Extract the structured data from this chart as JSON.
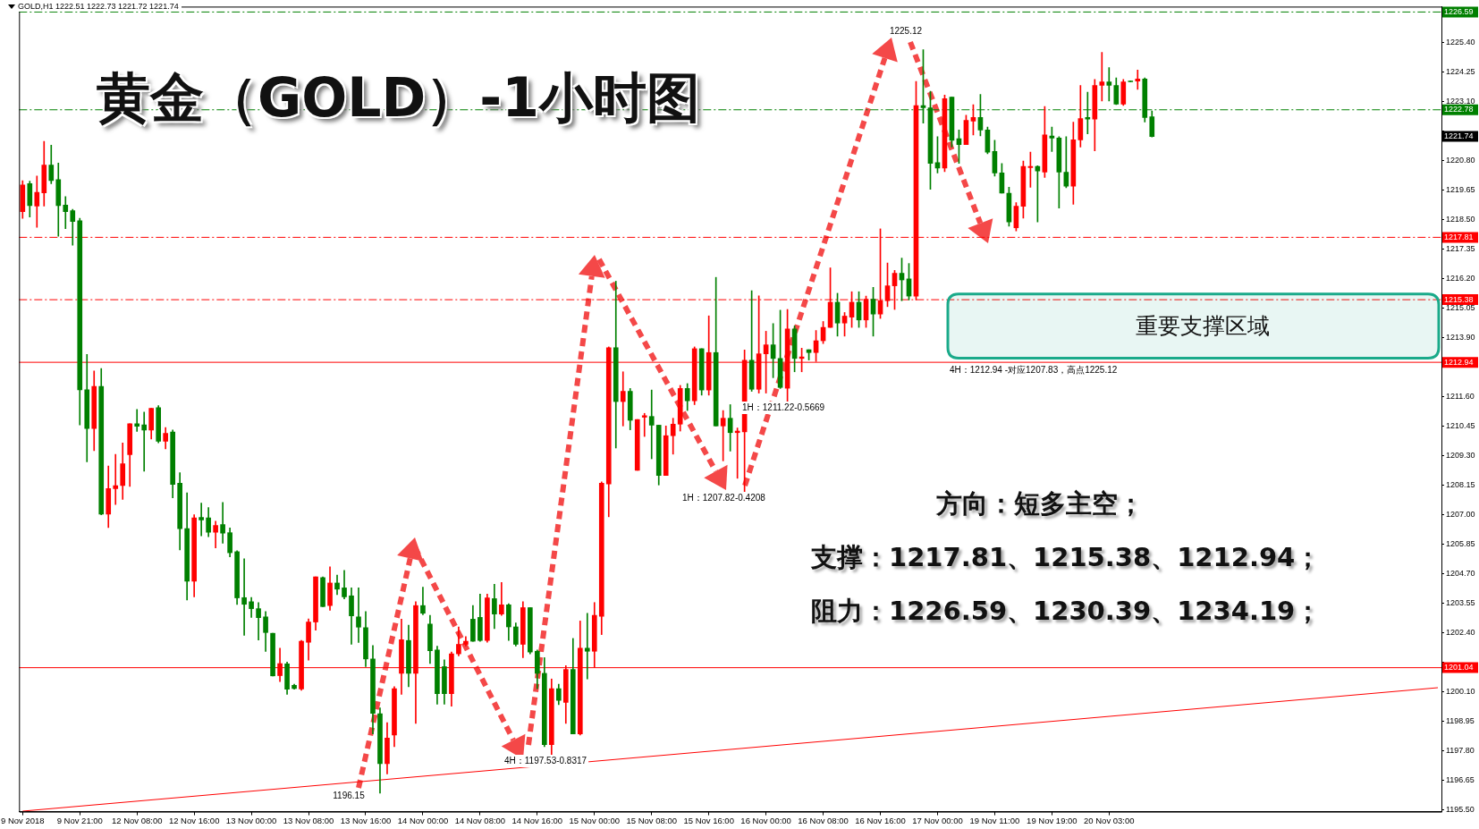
{
  "chart_data": {
    "type": "candlestick",
    "title": "黄金（GOLD）-1小时图",
    "subtitle": "GOLD,H1  1222.51 1222.73 1221.72 1221.74",
    "categories": [
      "9 Nov 2018",
      null,
      null,
      null,
      null,
      null,
      null,
      null,
      "9 Nov 21:00",
      null,
      null,
      null,
      null,
      null,
      null,
      null,
      "12 Nov 08:00",
      null,
      null,
      null,
      null,
      null,
      null,
      null,
      "12 Nov 16:00",
      null,
      null,
      null,
      null,
      null,
      null,
      null,
      "13 Nov 00:00",
      null,
      null,
      null,
      null,
      null,
      null,
      null,
      "13 Nov 08:00",
      null,
      null,
      null,
      null,
      null,
      null,
      null,
      "13 Nov 16:00",
      null,
      null,
      null,
      null,
      null,
      null,
      null,
      "14 Nov 00:00",
      null,
      null,
      null,
      null,
      null,
      null,
      null,
      "14 Nov 08:00",
      null,
      null,
      null,
      null,
      null,
      null,
      null,
      "14 Nov 16:00",
      null,
      null,
      null,
      null,
      null,
      null,
      null,
      "15 Nov 00:00",
      null,
      null,
      null,
      null,
      null,
      null,
      null,
      "15 Nov 08:00",
      null,
      null,
      null,
      null,
      null,
      null,
      null,
      "15 Nov 16:00",
      null,
      null,
      null,
      null,
      null,
      null,
      null,
      "16 Nov 00:00",
      null,
      null,
      null,
      null,
      null,
      null,
      null,
      "16 Nov 08:00",
      null,
      null,
      null,
      null,
      null,
      null,
      null,
      "16 Nov 16:00",
      null,
      null,
      null,
      null,
      null,
      null,
      null,
      "17 Nov 00:00",
      null,
      null,
      null,
      null,
      null,
      null,
      null,
      "19 Nov 11:00",
      null,
      null,
      null,
      null,
      null,
      null,
      null,
      "19 Nov 19:00",
      null,
      null,
      null,
      null,
      null,
      null,
      null,
      "20 Nov 03:00",
      null,
      null,
      null,
      null,
      null,
      null,
      null,
      null,
      null,
      null,
      null,
      null,
      null,
      null,
      null,
      null,
      null,
      null,
      null,
      null,
      null,
      null,
      null,
      null,
      null,
      null,
      null,
      null,
      null,
      null,
      null,
      null,
      null,
      null,
      null,
      null,
      null,
      null,
      null,
      null,
      null,
      null,
      null,
      null,
      null,
      null
    ],
    "ohlc": [
      [
        1218.81,
        1220.02,
        1218.55,
        1219.85
      ],
      [
        1219.9,
        1220.0,
        1218.6,
        1219.05
      ],
      [
        1219.03,
        1220.2,
        1218.2,
        1219.56
      ],
      [
        1219.54,
        1221.55,
        1219.03,
        1220.63
      ],
      [
        1220.63,
        1221.4,
        1219.9,
        1220.02
      ],
      [
        1220.06,
        1220.7,
        1217.85,
        1219.05
      ],
      [
        1219.07,
        1219.4,
        1218.15,
        1218.81
      ],
      [
        1218.85,
        1218.9,
        1217.5,
        1218.43
      ],
      [
        1218.46,
        1218.55,
        1210.5,
        1211.87
      ],
      [
        1211.87,
        1213.25,
        1209.06,
        1210.36
      ],
      [
        1210.36,
        1212.6,
        1209.5,
        1212.0
      ],
      [
        1212.0,
        1212.7,
        1207.0,
        1207.02
      ],
      [
        1207.02,
        1208.9,
        1206.5,
        1208.02
      ],
      [
        1208.02,
        1209.35,
        1207.4,
        1208.13
      ],
      [
        1208.14,
        1209.8,
        1207.6,
        1208.99
      ],
      [
        1209.34,
        1210.55,
        1208.1,
        1210.55
      ],
      [
        1210.55,
        1211.1,
        1210.25,
        1210.45
      ],
      [
        1210.5,
        1211.0,
        1208.7,
        1210.3
      ],
      [
        1210.3,
        1211.15,
        1209.95,
        1211.15
      ],
      [
        1211.17,
        1211.25,
        1209.8,
        1209.86
      ],
      [
        1209.86,
        1210.4,
        1209.57,
        1210.17
      ],
      [
        1210.22,
        1210.3,
        1207.66,
        1208.18
      ],
      [
        1208.23,
        1208.64,
        1205.63,
        1206.46
      ],
      [
        1206.46,
        1207.85,
        1203.68,
        1204.41
      ],
      [
        1204.41,
        1207.0,
        1203.8,
        1206.88
      ],
      [
        1206.9,
        1207.45,
        1206.18,
        1206.8
      ],
      [
        1206.88,
        1207.28,
        1206.14,
        1206.32
      ],
      [
        1206.32,
        1206.75,
        1205.71,
        1206.58
      ],
      [
        1206.62,
        1207.48,
        1205.89,
        1206.28
      ],
      [
        1206.3,
        1206.49,
        1205.36,
        1205.52
      ],
      [
        1205.56,
        1205.6,
        1203.5,
        1203.76
      ],
      [
        1203.77,
        1205.28,
        1202.3,
        1203.51
      ],
      [
        1203.61,
        1203.78,
        1203.0,
        1203.34
      ],
      [
        1203.34,
        1203.58,
        1202.12,
        1202.99
      ],
      [
        1203.02,
        1203.23,
        1201.67,
        1202.41
      ],
      [
        1202.38,
        1202.38,
        1200.72,
        1200.72
      ],
      [
        1200.73,
        1201.8,
        1200.5,
        1201.2
      ],
      [
        1201.19,
        1201.26,
        1200.0,
        1200.2
      ],
      [
        1200.35,
        1200.4,
        1200.2,
        1200.23
      ],
      [
        1200.21,
        1202.1,
        1200.16,
        1202.07
      ],
      [
        1202.03,
        1202.94,
        1201.33,
        1202.82
      ],
      [
        1202.82,
        1204.58,
        1202.5,
        1204.58
      ],
      [
        1204.55,
        1204.58,
        1203.42,
        1203.42
      ],
      [
        1203.46,
        1204.97,
        1203.28,
        1204.34
      ],
      [
        1204.34,
        1204.65,
        1203.89,
        1204.1
      ],
      [
        1204.15,
        1204.83,
        1203.72,
        1203.8
      ],
      [
        1203.84,
        1204.15,
        1201.95,
        1203.06
      ],
      [
        1203.02,
        1204.15,
        1202.02,
        1202.62
      ],
      [
        1202.6,
        1203.23,
        1201.08,
        1201.38
      ],
      [
        1201.38,
        1201.9,
        1198.46,
        1199.26
      ],
      [
        1199.25,
        1199.47,
        1196.15,
        1197.3
      ],
      [
        1197.3,
        1198.9,
        1196.9,
        1198.3
      ],
      [
        1198.42,
        1200.3,
        1197.96,
        1200.22
      ],
      [
        1200.82,
        1202.93,
        1200.0,
        1202.13
      ],
      [
        1202.1,
        1202.7,
        1200.3,
        1200.82
      ],
      [
        1200.82,
        1203.61,
        1198.87,
        1203.46
      ],
      [
        1203.46,
        1204.18,
        1203.1,
        1203.16
      ],
      [
        1202.74,
        1203.08,
        1201.2,
        1201.7
      ],
      [
        1201.73,
        1201.88,
        1199.62,
        1200.03
      ],
      [
        1201.08,
        1201.35,
        1199.62,
        1200.03
      ],
      [
        1200.03,
        1201.65,
        1199.54,
        1201.58
      ],
      [
        1201.58,
        1202.63,
        1201.5,
        1201.95
      ],
      [
        1201.95,
        1202.25,
        1201.88,
        1202.07
      ],
      [
        1202.93,
        1203.46,
        1202.07,
        1202.07
      ],
      [
        1203.0,
        1203.91,
        1202.07,
        1202.1
      ],
      [
        1202.1,
        1203.91,
        1202.03,
        1203.76
      ],
      [
        1203.73,
        1204.29,
        1202.56,
        1203.13
      ],
      [
        1203.13,
        1204.36,
        1203.08,
        1203.49
      ],
      [
        1203.49,
        1203.53,
        1202.1,
        1202.63
      ],
      [
        1202.63,
        1202.78,
        1201.88,
        1201.95
      ],
      [
        1201.95,
        1203.61,
        1201.43,
        1203.38
      ],
      [
        1203.38,
        1203.38,
        1201.58,
        1201.65
      ],
      [
        1201.68,
        1201.73,
        1200.22,
        1200.82
      ],
      [
        1200.82,
        1201.43,
        1197.96,
        1198.04
      ],
      [
        1198.04,
        1200.6,
        1197.53,
        1200.22
      ],
      [
        1200.22,
        1200.4,
        1199.6,
        1199.77
      ],
      [
        1199.69,
        1201.12,
        1198.87,
        1200.97
      ],
      [
        1200.97,
        1202.18,
        1198.46,
        1198.46
      ],
      [
        1198.46,
        1202.86,
        1198.42,
        1201.8
      ],
      [
        1201.8,
        1203.16,
        1200.6,
        1201.68
      ],
      [
        1201.68,
        1203.58,
        1201.05,
        1203.08
      ],
      [
        1203.04,
        1208.28,
        1202.33,
        1208.23
      ],
      [
        1208.2,
        1213.54,
        1206.92,
        1213.51
      ],
      [
        1213.51,
        1216.1,
        1209.6,
        1211.41
      ],
      [
        1211.41,
        1212.57,
        1210.46,
        1211.81
      ],
      [
        1211.81,
        1211.92,
        1210.31,
        1210.68
      ],
      [
        1208.73,
        1210.71,
        1208.73,
        1210.71
      ],
      [
        1210.8,
        1210.95,
        1210.05,
        1210.86
      ],
      [
        1210.83,
        1211.86,
        1209.18,
        1210.49
      ],
      [
        1210.49,
        1210.49,
        1208.16,
        1208.53
      ],
      [
        1208.53,
        1210.46,
        1208.53,
        1210.08
      ],
      [
        1210.08,
        1210.76,
        1209.36,
        1210.53
      ],
      [
        1210.53,
        1212.04,
        1210.26,
        1211.92
      ],
      [
        1211.92,
        1212.11,
        1211.06,
        1211.44
      ],
      [
        1211.44,
        1213.54,
        1211.29,
        1213.47
      ],
      [
        1213.47,
        1213.47,
        1211.66,
        1211.86
      ],
      [
        1211.86,
        1214.75,
        1211.66,
        1213.32
      ],
      [
        1213.32,
        1216.25,
        1210.46,
        1210.46
      ],
      [
        1210.46,
        1211.06,
        1209.1,
        1210.76
      ],
      [
        1210.76,
        1211.29,
        1209.48,
        1210.2
      ],
      [
        1210.2,
        1210.38,
        1208.42,
        1210.26
      ],
      [
        1210.23,
        1213.42,
        1207.82,
        1213.02
      ],
      [
        1213.02,
        1215.73,
        1211.81,
        1211.89
      ],
      [
        1211.89,
        1215.53,
        1211.74,
        1213.27
      ],
      [
        1213.27,
        1214.15,
        1211.74,
        1213.62
      ],
      [
        1213.62,
        1214.45,
        1212.34,
        1213.09
      ],
      [
        1213.09,
        1214.97,
        1211.92,
        1211.96
      ],
      [
        1211.93,
        1215.0,
        1211.29,
        1214.24
      ],
      [
        1214.24,
        1214.36,
        1212.57,
        1213.09
      ],
      [
        1213.09,
        1213.49,
        1212.57,
        1213.15
      ],
      [
        1213.43,
        1213.43,
        1213.03,
        1213.32
      ],
      [
        1213.32,
        1214.18,
        1212.97,
        1213.78
      ],
      [
        1213.78,
        1214.53,
        1213.67,
        1214.3
      ],
      [
        1214.3,
        1216.62,
        1214.3,
        1215.28
      ],
      [
        1215.28,
        1215.63,
        1213.96,
        1214.47
      ],
      [
        1214.47,
        1214.88,
        1213.96,
        1214.74
      ],
      [
        1214.7,
        1215.69,
        1214.3,
        1215.28
      ],
      [
        1215.28,
        1215.69,
        1214.3,
        1214.59
      ],
      [
        1214.59,
        1215.52,
        1214.3,
        1215.4
      ],
      [
        1215.4,
        1215.86,
        1213.96,
        1214.82
      ],
      [
        1214.82,
        1218.14,
        1214.65,
        1215.34
      ],
      [
        1215.34,
        1216.81,
        1215.11,
        1215.92
      ],
      [
        1215.92,
        1216.52,
        1215.0,
        1216.41
      ],
      [
        1216.41,
        1217.0,
        1215.34,
        1216.15
      ],
      [
        1216.19,
        1216.79,
        1215.37,
        1215.52
      ],
      [
        1215.52,
        1223.88,
        1215.37,
        1222.94
      ],
      [
        1222.94,
        1225.12,
        1222.26,
        1222.86
      ],
      [
        1222.86,
        1223.5,
        1219.68,
        1220.69
      ],
      [
        1220.72,
        1221.73,
        1220.32,
        1220.51
      ],
      [
        1220.51,
        1223.35,
        1220.37,
        1223.21
      ],
      [
        1223.27,
        1223.27,
        1221.33,
        1221.59
      ],
      [
        1221.65,
        1221.99,
        1220.69,
        1221.42
      ],
      [
        1221.42,
        1222.57,
        1221.42,
        1222.37
      ],
      [
        1222.34,
        1222.98,
        1221.8,
        1222.48
      ],
      [
        1222.48,
        1223.38,
        1221.76,
        1221.99
      ],
      [
        1221.99,
        1222.11,
        1221.07,
        1221.13
      ],
      [
        1221.16,
        1221.59,
        1220.2,
        1220.32
      ],
      [
        1220.32,
        1220.69,
        1219.53,
        1219.53
      ],
      [
        1219.53,
        1219.76,
        1218.24,
        1218.41
      ],
      [
        1218.18,
        1219.16,
        1218.06,
        1219.02
      ],
      [
        1219.02,
        1220.78,
        1218.56,
        1220.57
      ],
      [
        1220.53,
        1221.13,
        1219.76,
        1220.57
      ],
      [
        1220.57,
        1220.6,
        1218.41,
        1220.4
      ],
      [
        1220.35,
        1222.91,
        1220.14,
        1221.8
      ],
      [
        1221.76,
        1222.11,
        1221.15,
        1221.68
      ],
      [
        1221.68,
        1221.73,
        1218.95,
        1220.35
      ],
      [
        1220.35,
        1221.73,
        1219.74,
        1219.8
      ],
      [
        1219.8,
        1222.3,
        1219.1,
        1221.61
      ],
      [
        1221.61,
        1223.73,
        1221.33,
        1222.44
      ],
      [
        1222.48,
        1223.47,
        1221.84,
        1222.42
      ],
      [
        1222.42,
        1223.96,
        1221.18,
        1223.73
      ],
      [
        1223.73,
        1225.02,
        1223.12,
        1223.87
      ],
      [
        1223.87,
        1224.42,
        1223.12,
        1223.73
      ],
      [
        1223.73,
        1224.02,
        1222.98,
        1223.0
      ],
      [
        1223.0,
        1223.96,
        1222.95,
        1223.87
      ],
      [
        1223.9,
        1223.9,
        1223.87,
        1223.87
      ],
      [
        1223.9,
        1224.33,
        1223.58,
        1223.98
      ],
      [
        1223.98,
        1224.02,
        1222.3,
        1222.48
      ],
      [
        1222.51,
        1222.73,
        1221.72,
        1221.74
      ],
      null,
      null,
      null,
      null,
      null,
      null,
      null,
      null,
      null,
      null,
      null,
      null,
      null,
      null,
      null,
      null,
      null,
      null,
      null,
      null,
      null,
      null,
      null,
      null,
      null,
      null,
      null,
      null,
      null,
      null,
      null,
      null,
      null,
      null,
      null,
      null,
      null,
      null,
      null,
      null
    ],
    "colors": [
      "#ff0000",
      "#008000",
      "#ff0000",
      "#ff0000",
      "#008000",
      "#008000",
      "#008000",
      "#008000",
      "#008000",
      "#008000",
      "#ff0000",
      "#008000",
      "#ff0000",
      "#ff0000",
      "#ff0000",
      "#ff0000",
      "#008000",
      "#008000",
      "#ff0000",
      "#008000",
      "#ff0000",
      "#008000",
      "#008000",
      "#008000",
      "#ff0000",
      "#008000",
      "#008000",
      "#ff0000",
      "#008000",
      "#008000",
      "#008000",
      "#008000",
      "#008000",
      "#008000",
      "#008000",
      "#008000",
      "#ff0000",
      "#008000",
      "#008000",
      "#ff0000",
      "#ff0000",
      "#ff0000",
      "#008000",
      "#ff0000",
      "#008000",
      "#008000",
      "#008000",
      "#008000",
      "#008000",
      "#008000",
      "#008000",
      "#ff0000",
      "#ff0000",
      "#ff0000",
      "#008000",
      "#ff0000",
      "#008000",
      "#008000",
      "#008000",
      "#008000",
      "#ff0000",
      "#ff0000",
      "#ff0000",
      "#008000",
      "#008000",
      "#ff0000",
      "#008000",
      "#ff0000",
      "#008000",
      "#008000",
      "#ff0000",
      "#008000",
      "#008000",
      "#008000",
      "#ff0000",
      "#008000",
      "#ff0000",
      "#008000",
      "#ff0000",
      "#008000",
      "#ff0000",
      "#ff0000",
      "#ff0000",
      "#008000",
      "#ff0000",
      "#008000",
      "#ff0000",
      "#ff0000",
      "#008000",
      "#008000",
      "#ff0000",
      "#ff0000",
      "#ff0000",
      "#008000",
      "#ff0000",
      "#008000",
      "#ff0000",
      "#008000",
      "#ff0000",
      "#008000",
      "#ff0000",
      "#ff0000",
      "#008000",
      "#ff0000",
      "#ff0000",
      "#008000",
      "#008000",
      "#ff0000",
      "#008000",
      "#ff0000",
      "#008000",
      "#ff0000",
      "#ff0000",
      "#ff0000",
      "#008000",
      "#ff0000",
      "#ff0000",
      "#008000",
      "#ff0000",
      "#008000",
      "#ff0000",
      "#ff0000",
      "#ff0000",
      "#008000",
      "#008000",
      "#ff0000",
      "#008000",
      "#008000",
      "#008000",
      "#ff0000",
      "#008000",
      "#008000",
      "#ff0000",
      "#ff0000",
      "#008000",
      "#008000",
      "#008000",
      "#008000",
      "#008000",
      "#ff0000",
      "#ff0000",
      "#ff0000",
      "#008000",
      "#ff0000",
      "#008000",
      "#008000",
      "#008000",
      "#ff0000",
      "#ff0000",
      "#008000",
      "#ff0000",
      "#ff0000",
      "#008000",
      "#008000",
      "#ff0000",
      "#008000",
      "#ff0000",
      "#008000",
      "#008000",
      null,
      null,
      null,
      null,
      null,
      null,
      null,
      null,
      null,
      null,
      null,
      null,
      null,
      null,
      null,
      null,
      null,
      null,
      null,
      null,
      null,
      null,
      null,
      null,
      null,
      null,
      null,
      null,
      null,
      null,
      null,
      null,
      null,
      null,
      null,
      null,
      null,
      null,
      null,
      null
    ],
    "series": [
      {
        "type": "line",
        "color": "#ff0000",
        "values": [
          1195.45,
          null,
          null,
          null,
          null,
          null,
          null,
          null,
          null,
          null,
          null,
          null,
          null,
          null,
          null,
          null,
          null,
          null,
          null,
          null,
          null,
          null,
          null,
          null,
          null,
          null,
          null,
          null,
          null,
          null,
          null,
          null,
          null,
          null,
          null,
          null,
          null,
          null,
          null,
          null,
          null,
          null,
          null,
          null,
          null,
          null,
          null,
          null,
          null,
          null,
          null,
          null,
          null,
          null,
          null,
          null,
          null,
          null,
          null,
          null,
          null,
          null,
          null,
          null,
          null,
          null,
          null,
          null,
          null,
          null,
          null,
          null,
          null,
          null,
          null,
          null,
          null,
          null,
          null,
          null,
          null,
          null,
          null,
          null,
          null,
          null,
          null,
          null,
          null,
          null,
          null,
          null,
          null,
          null,
          null,
          null,
          null,
          null,
          null,
          null,
          null,
          null,
          null,
          null,
          null,
          null,
          null,
          null,
          null,
          null,
          null,
          null,
          null,
          null,
          null,
          null,
          null,
          null,
          null,
          null,
          null,
          null,
          null,
          null,
          null,
          null,
          null,
          null,
          null,
          null,
          null,
          null,
          null,
          null,
          null,
          null,
          null,
          null,
          null,
          null,
          null,
          null,
          null,
          null,
          null,
          null,
          null,
          null,
          null,
          null,
          null,
          null,
          null,
          null,
          null,
          null,
          null,
          null,
          null,
          null,
          null,
          null,
          null,
          null,
          null,
          null,
          null,
          null,
          null,
          null,
          null,
          null,
          null,
          null,
          null,
          null,
          null,
          null,
          null,
          null,
          null,
          null,
          null,
          null,
          null,
          null,
          null,
          null,
          null,
          null,
          null,
          null,
          null,
          null,
          null,
          null,
          null,
          null,
          1200.26
        ]
      }
    ],
    "ylim": [
      1195.43,
      1226.8
    ],
    "yticks": [
      {
        "value": 1195.5,
        "label": "1195.50"
      },
      1196.65,
      {
        "value": 1197.8,
        "label": "1197.80"
      },
      1198.95,
      {
        "value": 1200.1,
        "label": "1200.10"
      },
      {
        "value": 1201.25,
        "label": null
      },
      {
        "value": 1202.4,
        "label": "1202.40"
      },
      1203.55,
      {
        "value": 1204.7,
        "label": "1204.70"
      },
      1205.85,
      {
        "value": 1207,
        "label": "1207.00"
      },
      1208.15,
      {
        "value": 1209.3,
        "label": "1209.30"
      },
      1210.45,
      {
        "value": 1211.6,
        "label": "1211.60"
      },
      {
        "value": 1212.75,
        "label": null
      },
      {
        "value": 1213.9,
        "label": "1213.90"
      },
      1215.05,
      {
        "value": 1216.2,
        "label": "1216.20"
      },
      1217.35,
      {
        "value": 1218.5,
        "label": "1218.50"
      },
      1219.65,
      {
        "value": 1220.8,
        "label": "1220.80"
      },
      {
        "value": 1221.95,
        "label": null
      },
      {
        "value": 1223.1,
        "label": "1223.10"
      },
      1224.25,
      {
        "value": 1225.4,
        "label": "1225.40"
      }
    ],
    "ref_lines": [
      {
        "axis": "y",
        "value": 1226.59,
        "label": "1226.59",
        "color": "#008000",
        "line_style": "dashed"
      },
      {
        "axis": "y",
        "value": 1222.78,
        "label": "1222.78",
        "color": "#008000",
        "line_style": "dashed"
      },
      {
        "axis": "y",
        "value": 1217.81,
        "label": "1217.81",
        "color": "#ff0000",
        "line_style": "dashed"
      },
      {
        "axis": "y",
        "value": 1215.38,
        "label": "1215.38",
        "color": "#ff0000",
        "line_style": "dashed"
      },
      {
        "axis": "y",
        "value": 1212.94,
        "label": "1212.94",
        "color": "#ff0000",
        "line_style": "solid"
      },
      {
        "axis": "y",
        "value": 1201.04,
        "label": "1201.04",
        "color": "#ff0000",
        "line_style": "solid"
      }
    ],
    "bands": [
      {
        "axis": "y",
        "from": 1213.1,
        "to": 1215.6,
        "label": "重要支撑区域",
        "color": "#1aaa8a"
      }
    ],
    "annotations": [
      "1225.12",
      "1196.15",
      "4H：1197.53-0.8317",
      "1H：1207.82-0.4208",
      "1H：1211.22-0.5669",
      {
        "text": "4H：1212.94 -对应1207.83，高点1225.12",
        "y": 1212.94
      },
      {
        "text": "1221.74",
        "y": 1221.74
      },
      "方向：短多主空；",
      "支撑：1217.81、1215.38、1212.94；",
      "阻力：1226.59、1230.39、1234.19；"
    ]
  }
}
